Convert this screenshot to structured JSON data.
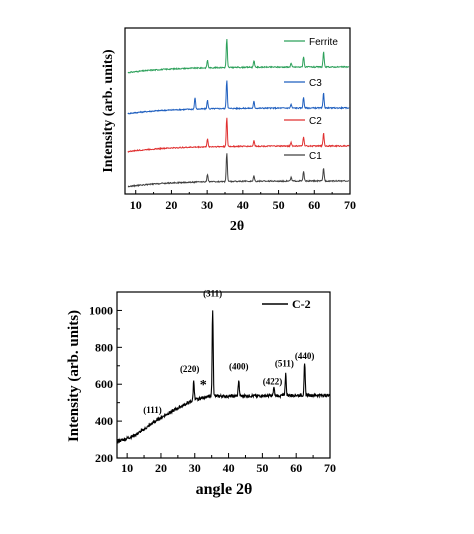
{
  "chart_data": [
    {
      "type": "line",
      "stacked_offset": true,
      "xlabel": "2θ",
      "ylabel": "Intensity (arb. units)",
      "xlim": [
        7,
        70
      ],
      "xticks": [
        10,
        20,
        30,
        40,
        50,
        60,
        70
      ],
      "y_ticks_shown": false,
      "legend_placement": "per-series, right side",
      "series": [
        {
          "name": "Ferrite",
          "color": "#2ca05a",
          "offset": 3,
          "peaks": [
            [
              30.1,
              0.2
            ],
            [
              35.5,
              0.75
            ],
            [
              43.1,
              0.18
            ],
            [
              53.5,
              0.1
            ],
            [
              57.0,
              0.28
            ],
            [
              62.6,
              0.4
            ]
          ]
        },
        {
          "name": "C3",
          "color": "#1f5fbf",
          "offset": 2,
          "peaks": [
            [
              26.6,
              0.3
            ],
            [
              30.1,
              0.22
            ],
            [
              35.5,
              0.75
            ],
            [
              43.1,
              0.18
            ],
            [
              53.5,
              0.1
            ],
            [
              57.0,
              0.28
            ],
            [
              62.6,
              0.4
            ]
          ]
        },
        {
          "name": "C2",
          "color": "#e03030",
          "offset": 1,
          "peaks": [
            [
              30.1,
              0.2
            ],
            [
              35.5,
              0.75
            ],
            [
              43.1,
              0.15
            ],
            [
              53.5,
              0.1
            ],
            [
              57.0,
              0.25
            ],
            [
              62.6,
              0.35
            ]
          ]
        },
        {
          "name": "C1",
          "color": "#404040",
          "offset": 0,
          "peaks": [
            [
              30.1,
              0.2
            ],
            [
              35.5,
              0.75
            ],
            [
              43.1,
              0.15
            ],
            [
              53.5,
              0.1
            ],
            [
              57.0,
              0.25
            ],
            [
              62.6,
              0.35
            ]
          ]
        }
      ]
    },
    {
      "type": "line",
      "xlabel": "angle 2θ",
      "ylabel": "Intensity (arb. units)",
      "xlim": [
        7,
        70
      ],
      "ylim": [
        200,
        1100
      ],
      "xticks": [
        10,
        20,
        30,
        40,
        50,
        60,
        70
      ],
      "yticks": [
        200,
        400,
        600,
        800,
        1000
      ],
      "legend_placement": "top-right",
      "series": [
        {
          "name": "C-2",
          "color": "#000000",
          "baseline": [
            [
              7,
              290
            ],
            [
              9,
              300
            ],
            [
              12,
              320
            ],
            [
              15,
              355
            ],
            [
              18,
              395
            ],
            [
              21,
              430
            ],
            [
              24,
              460
            ],
            [
              27,
              490
            ],
            [
              30,
              515
            ],
            [
              33,
              530
            ],
            [
              36,
              535
            ],
            [
              40,
              535
            ],
            [
              45,
              537
            ],
            [
              50,
              537
            ],
            [
              55,
              538
            ],
            [
              60,
              540
            ],
            [
              65,
              540
            ],
            [
              70,
              540
            ]
          ],
          "peaks": [
            [
              29.7,
              110
            ],
            [
              35.3,
              470
            ],
            [
              43.0,
              85
            ],
            [
              53.4,
              45
            ],
            [
              56.9,
              120
            ],
            [
              62.5,
              180
            ]
          ]
        }
      ],
      "annotations": [
        {
          "text": "(111)",
          "x": 17.5,
          "y": 445
        },
        {
          "text": "(220)",
          "x": 28.5,
          "y": 665
        },
        {
          "text": "(311)",
          "x": 35.3,
          "y": 1075
        },
        {
          "text": "(400)",
          "x": 43.0,
          "y": 680
        },
        {
          "text": "(422)",
          "x": 53.0,
          "y": 598
        },
        {
          "text": "(511)",
          "x": 56.5,
          "y": 695
        },
        {
          "text": "(440)",
          "x": 62.5,
          "y": 738
        },
        {
          "text": "*",
          "x": 32.5,
          "y": 575
        }
      ]
    }
  ]
}
